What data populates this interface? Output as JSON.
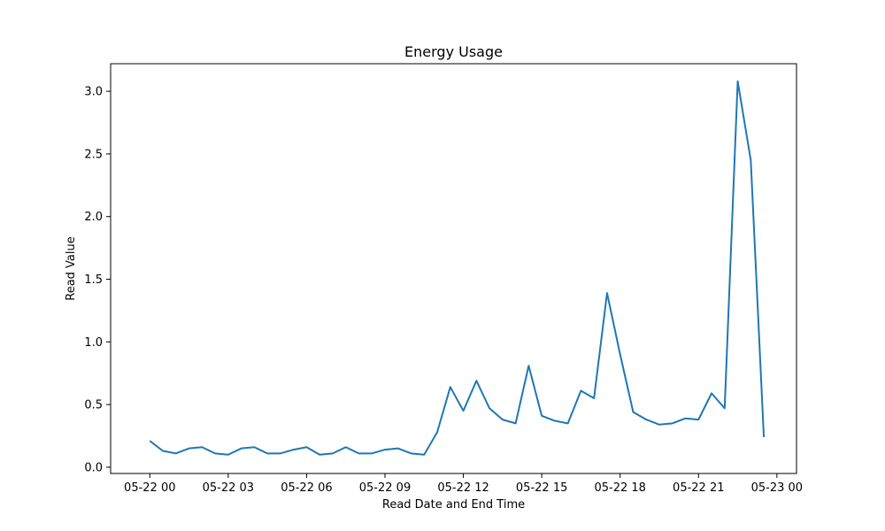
{
  "chart_data": {
    "type": "line",
    "title": "Energy Usage",
    "xlabel": "Read Date and End Time",
    "ylabel": "Read Value",
    "grid": false,
    "legend": "none",
    "series_color": "#1f77b4",
    "x_start": "2021-05-22 00:00",
    "x_interval_minutes": 30,
    "xlim": [
      "2021-05-21 22:30",
      "2021-05-23 00:45"
    ],
    "ylim": [
      -0.05,
      3.22
    ],
    "x_ticks": [
      {
        "value": "2021-05-22 00:00",
        "label": "05-22 00"
      },
      {
        "value": "2021-05-22 03:00",
        "label": "05-22 03"
      },
      {
        "value": "2021-05-22 06:00",
        "label": "05-22 06"
      },
      {
        "value": "2021-05-22 09:00",
        "label": "05-22 09"
      },
      {
        "value": "2021-05-22 12:00",
        "label": "05-22 12"
      },
      {
        "value": "2021-05-22 15:00",
        "label": "05-22 15"
      },
      {
        "value": "2021-05-22 18:00",
        "label": "05-22 18"
      },
      {
        "value": "2021-05-22 21:00",
        "label": "05-22 21"
      },
      {
        "value": "2021-05-23 00:00",
        "label": "05-23 00"
      }
    ],
    "y_ticks": [
      {
        "value": 0.0,
        "label": "0.0"
      },
      {
        "value": 0.5,
        "label": "0.5"
      },
      {
        "value": 1.0,
        "label": "1.0"
      },
      {
        "value": 1.5,
        "label": "1.5"
      },
      {
        "value": 2.0,
        "label": "2.0"
      },
      {
        "value": 2.5,
        "label": "2.5"
      },
      {
        "value": 3.0,
        "label": "3.0"
      }
    ],
    "series": [
      {
        "x": [
          "2021-05-22 00:00",
          "2021-05-22 00:30",
          "2021-05-22 01:00",
          "2021-05-22 01:30",
          "2021-05-22 02:00",
          "2021-05-22 02:30",
          "2021-05-22 03:00",
          "2021-05-22 03:30",
          "2021-05-22 04:00",
          "2021-05-22 04:30",
          "2021-05-22 05:00",
          "2021-05-22 05:30",
          "2021-05-22 06:00",
          "2021-05-22 06:30",
          "2021-05-22 07:00",
          "2021-05-22 07:30",
          "2021-05-22 08:00",
          "2021-05-22 08:30",
          "2021-05-22 09:00",
          "2021-05-22 09:30",
          "2021-05-22 10:00",
          "2021-05-22 10:30",
          "2021-05-22 11:00",
          "2021-05-22 11:30",
          "2021-05-22 12:00",
          "2021-05-22 12:30",
          "2021-05-22 13:00",
          "2021-05-22 13:30",
          "2021-05-22 14:00",
          "2021-05-22 14:30",
          "2021-05-22 15:00",
          "2021-05-22 15:30",
          "2021-05-22 16:00",
          "2021-05-22 16:30",
          "2021-05-22 17:00",
          "2021-05-22 17:30",
          "2021-05-22 18:00",
          "2021-05-22 18:30",
          "2021-05-22 19:00",
          "2021-05-22 19:30",
          "2021-05-22 20:00",
          "2021-05-22 20:30",
          "2021-05-22 21:00",
          "2021-05-22 21:30",
          "2021-05-22 22:00",
          "2021-05-22 22:30",
          "2021-05-22 23:00",
          "2021-05-22 23:30"
        ],
        "values": [
          0.21,
          0.13,
          0.11,
          0.15,
          0.16,
          0.11,
          0.1,
          0.15,
          0.16,
          0.11,
          0.11,
          0.14,
          0.16,
          0.1,
          0.11,
          0.16,
          0.11,
          0.11,
          0.14,
          0.15,
          0.11,
          0.1,
          0.28,
          0.64,
          0.45,
          0.69,
          0.47,
          0.38,
          0.35,
          0.81,
          0.41,
          0.37,
          0.35,
          0.61,
          0.55,
          1.39,
          0.9,
          0.44,
          0.38,
          0.34,
          0.35,
          0.39,
          0.38,
          0.59,
          0.47,
          3.08,
          2.45,
          0.24
        ]
      }
    ]
  }
}
